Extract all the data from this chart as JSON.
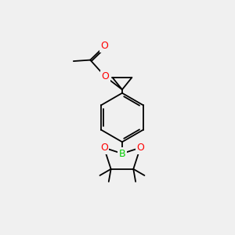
{
  "bg_color": "#f0f0f0",
  "bond_color": "#000000",
  "atom_colors": {
    "O": "#ff0000",
    "B": "#00cc00"
  },
  "lw": 1.3
}
